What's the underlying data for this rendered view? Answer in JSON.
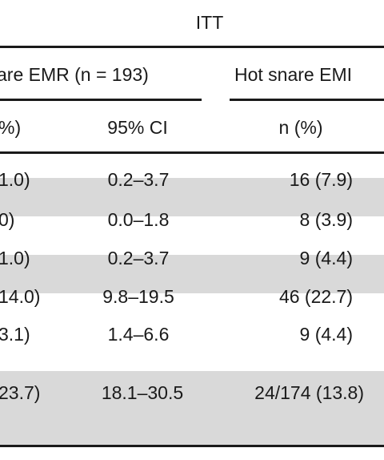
{
  "header": {
    "group_label": "ITT",
    "col_cold": "are EMR (n = 193)",
    "col_hot": "Hot snare EMI",
    "sub_pct_fragment": "%)",
    "sub_ci": "95% CI",
    "sub_n_pct": "n (%)"
  },
  "rows": [
    {
      "left": "1.0)",
      "ci": "0.2–3.7",
      "hot": "16 (7.9)"
    },
    {
      "left": "0)",
      "ci": "0.0–1.8",
      "hot": "8 (3.9)"
    },
    {
      "left": "1.0)",
      "ci": "0.2–3.7",
      "hot": "9 (4.4)"
    },
    {
      "left": "14.0)",
      "ci": "9.8–19.5",
      "hot": "46 (22.7)"
    },
    {
      "left": "3.1)",
      "ci": "1.4–6.6",
      "hot": "9 (4.4)"
    },
    {
      "left": "23.7)",
      "ci": "18.1–30.5",
      "hot": "24/174 (13.8)"
    }
  ]
}
